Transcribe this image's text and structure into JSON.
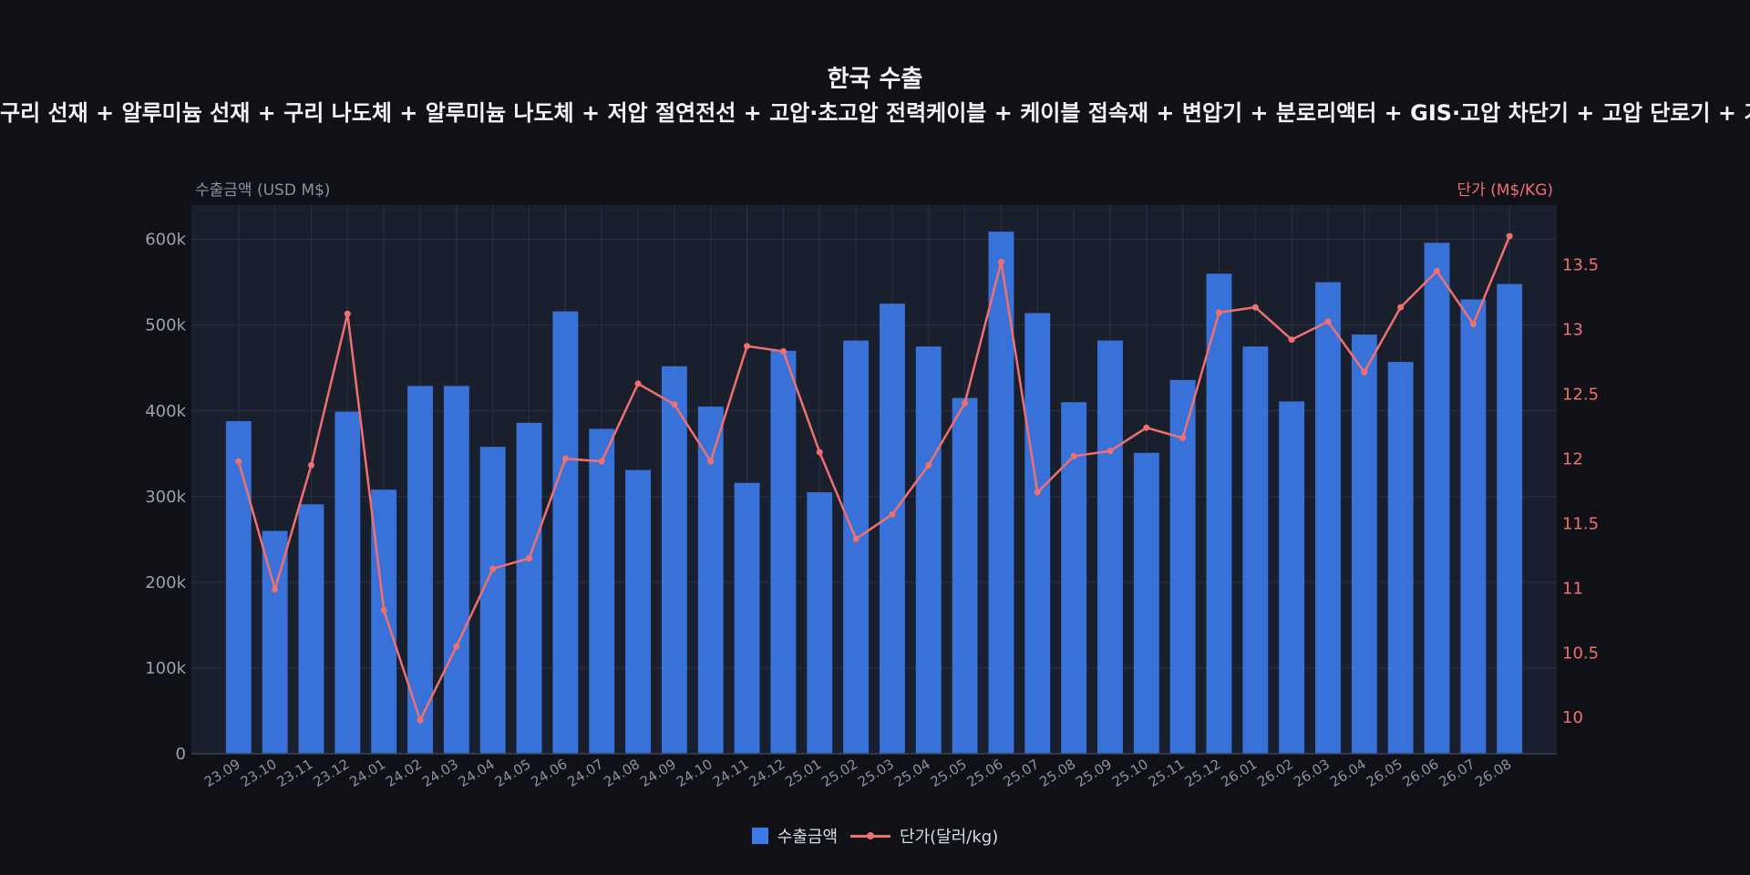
{
  "chart_data": {
    "type": "bar",
    "title": "한국 수출",
    "subtitle": "구리 선재 + 알루미늄 선재 + 구리 나도체 + 알루미늄 나도체 + 저압 절연전선 + 고압·초고압 전력케이블 + 케이블 접속재 + 변압기 + 분로리액터 + GIS·고압 차단기 + 고압 단로기 + 기타",
    "categories": [
      "23.09",
      "23.10",
      "23.11",
      "23.12",
      "24.01",
      "24.02",
      "24.03",
      "24.04",
      "24.05",
      "24.06",
      "24.07",
      "24.08",
      "24.09",
      "24.10",
      "24.11",
      "24.12",
      "25.01",
      "25.02",
      "25.03",
      "25.04",
      "25.05",
      "25.06",
      "25.07",
      "25.08",
      "25.09",
      "25.10",
      "25.11",
      "25.12",
      "26.01",
      "26.02",
      "26.03",
      "26.04",
      "26.05",
      "26.06",
      "26.07",
      "26.08"
    ],
    "series": [
      {
        "name": "수출금액",
        "type": "bar",
        "axis": "left",
        "color": "#3b7ae8",
        "values": [
          388000,
          260000,
          291000,
          399000,
          308000,
          429000,
          429000,
          358000,
          386000,
          516000,
          379000,
          331000,
          452000,
          405000,
          316000,
          470000,
          305000,
          482000,
          525000,
          475000,
          415000,
          609000,
          514000,
          410000,
          482000,
          351000,
          436000,
          560000,
          475000,
          411000,
          550000,
          489000,
          457000,
          596000,
          530000,
          548000
        ]
      },
      {
        "name": "단가(달러/kg)",
        "type": "line",
        "axis": "right",
        "color": "#f07070",
        "values": [
          11.98,
          10.99,
          11.95,
          13.12,
          10.83,
          9.98,
          10.55,
          11.15,
          11.23,
          12.0,
          11.98,
          12.58,
          12.42,
          11.98,
          12.87,
          12.83,
          12.05,
          11.38,
          11.57,
          11.95,
          12.43,
          13.52,
          11.74,
          12.02,
          12.06,
          12.24,
          12.16,
          13.13,
          13.17,
          12.92,
          13.06,
          12.67,
          13.17,
          13.45,
          13.04,
          13.72
        ]
      }
    ],
    "ylabel": "수출금액 (USD M$)",
    "ylim": [
      0,
      640000
    ],
    "yticks": [
      0,
      100000,
      200000,
      300000,
      400000,
      500000,
      600000
    ],
    "ytick_labels": [
      "0",
      "100k",
      "200k",
      "300k",
      "400k",
      "500k",
      "600k"
    ],
    "y2label": "단가 (M$/KG)",
    "y2lim": [
      9.72,
      13.96
    ],
    "y2ticks": [
      10,
      10.5,
      11,
      11.5,
      12,
      12.5,
      13,
      13.5
    ],
    "y2tick_labels": [
      "10",
      "10.5",
      "11",
      "11.5",
      "12",
      "12.5",
      "13",
      "13.5"
    ],
    "grid": true,
    "legend": "bottom"
  }
}
